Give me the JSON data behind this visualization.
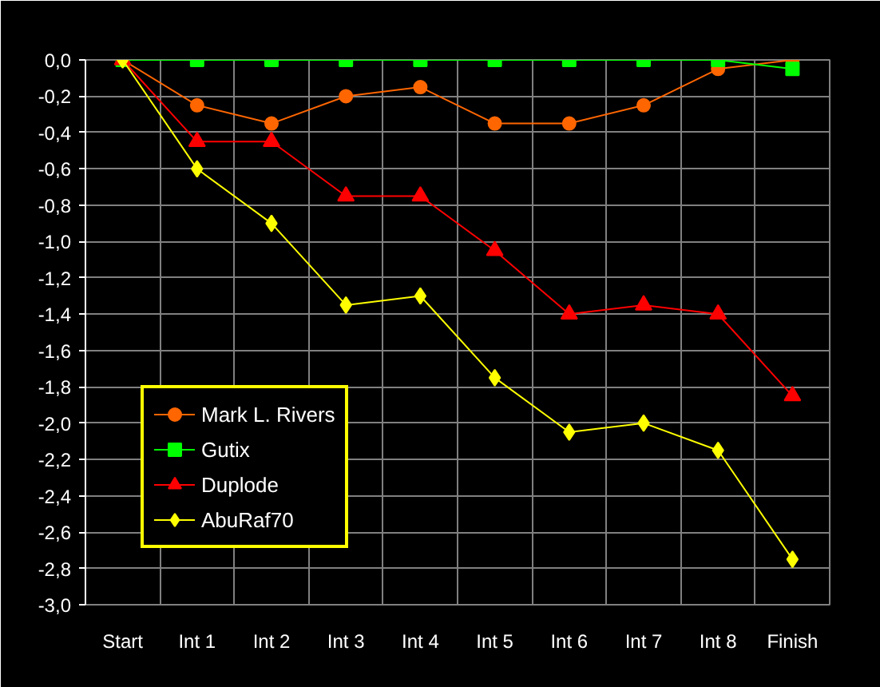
{
  "chart_data": {
    "type": "line",
    "categories": [
      "Start",
      "Int 1",
      "Int 2",
      "Int 3",
      "Int 4",
      "Int 5",
      "Int 6",
      "Int 7",
      "Int 8",
      "Finish"
    ],
    "series": [
      {
        "name": "Mark L. Rivers",
        "color": "#ff6600",
        "marker": "circle",
        "values": [
          0,
          -0.25,
          -0.35,
          -0.2,
          -0.15,
          -0.35,
          -0.35,
          -0.25,
          -0.05,
          0
        ]
      },
      {
        "name": "Gutix",
        "color": "#00ff00",
        "marker": "square",
        "values": [
          0,
          0,
          0,
          0,
          0,
          0,
          0,
          0,
          0,
          -0.05
        ]
      },
      {
        "name": "Duplode",
        "color": "#ff0000",
        "marker": "triangle",
        "values": [
          0,
          -0.45,
          -0.45,
          -0.75,
          -0.75,
          -1.05,
          -1.4,
          -1.35,
          -1.4,
          -1.85
        ]
      },
      {
        "name": "AbuRaf70",
        "color": "#ffff00",
        "marker": "diamond",
        "values": [
          0,
          -0.6,
          -0.9,
          -1.35,
          -1.3,
          -1.75,
          -2.05,
          -2.0,
          -2.15,
          -2.75
        ]
      }
    ],
    "ylim": [
      -3.0,
      0.0
    ],
    "yticks": [
      {
        "value": 0,
        "label": "0,0"
      },
      {
        "value": -0.2,
        "label": "-0,2"
      },
      {
        "value": -0.4,
        "label": "-0,4"
      },
      {
        "value": -0.6,
        "label": "-0,6"
      },
      {
        "value": -0.8,
        "label": "-0,8"
      },
      {
        "value": -1.0,
        "label": "-1,0"
      },
      {
        "value": -1.2,
        "label": "-1,2"
      },
      {
        "value": -1.4,
        "label": "-1,4"
      },
      {
        "value": -1.6,
        "label": "-1,6"
      },
      {
        "value": -1.8,
        "label": "-1,8"
      },
      {
        "value": -2.0,
        "label": "-2,0"
      },
      {
        "value": -2.2,
        "label": "-2,2"
      },
      {
        "value": -2.4,
        "label": "-2,4"
      },
      {
        "value": -2.6,
        "label": "-2,6"
      },
      {
        "value": -2.8,
        "label": "-2,8"
      },
      {
        "value": -3.0,
        "label": "-3,0"
      }
    ],
    "grid": true,
    "legend": "bottom left"
  }
}
